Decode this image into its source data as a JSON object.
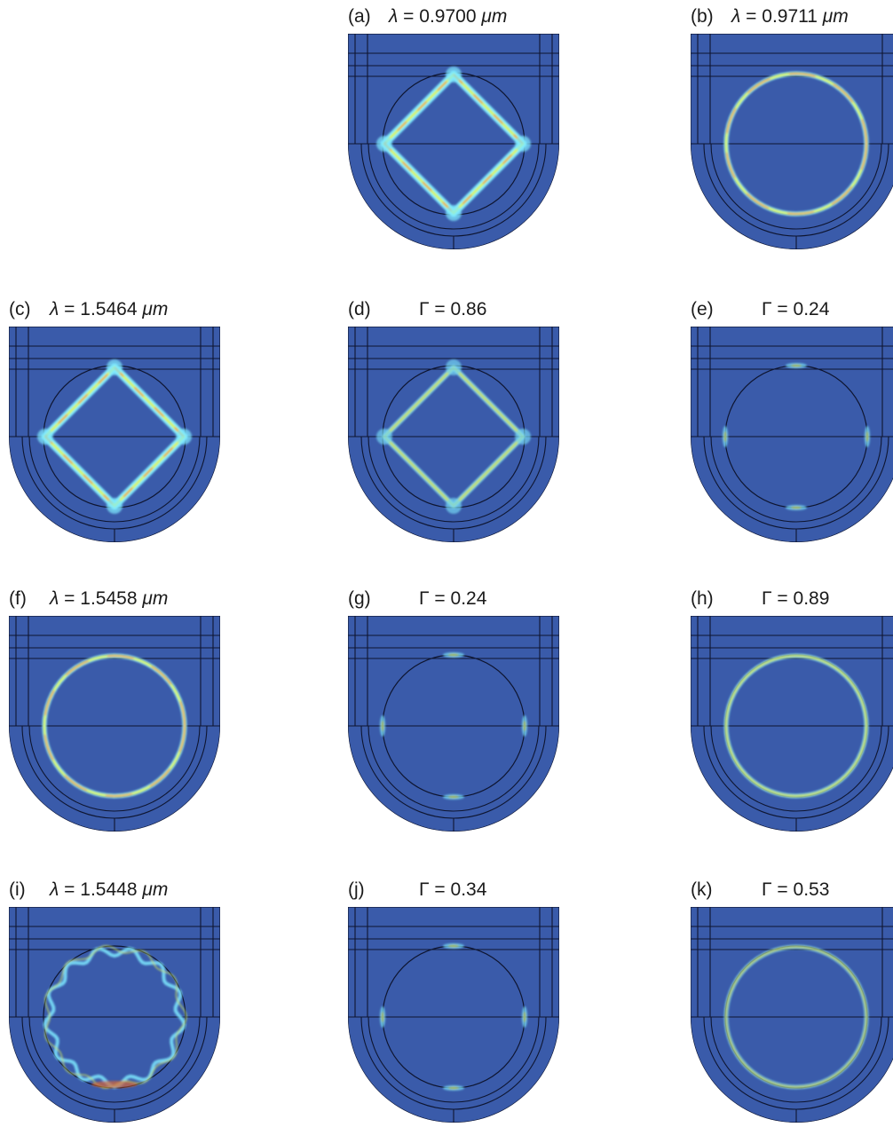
{
  "figure": {
    "field_style": {
      "background": "#3A5BAA",
      "outline": "#0E1530",
      "hot_colors": [
        "#7FE9FF",
        "#D9F55A",
        "#F26A22"
      ]
    },
    "panels": [
      {
        "id": "a",
        "letter": "(a)",
        "symbol": "λ",
        "value": "= 0.9700",
        "unit": "μm",
        "mode": "diamond",
        "intensity": "strong"
      },
      {
        "id": "b",
        "letter": "(b)",
        "symbol": "λ",
        "value": "= 0.9711",
        "unit": "μm",
        "mode": "ring",
        "intensity": "strong"
      },
      {
        "id": "c",
        "letter": "(c)",
        "symbol": "λ",
        "value": "= 1.5464",
        "unit": "μm",
        "mode": "diamond",
        "intensity": "strong"
      },
      {
        "id": "d",
        "letter": "(d)",
        "symbol": "Γ",
        "value": "= 0.86",
        "unit": "",
        "mode": "diamond",
        "intensity": "medium"
      },
      {
        "id": "e",
        "letter": "(e)",
        "symbol": "Γ",
        "value": "= 0.24",
        "unit": "",
        "mode": "spots",
        "intensity": "weak"
      },
      {
        "id": "f",
        "letter": "(f)",
        "symbol": "λ",
        "value": "= 1.5458",
        "unit": "μm",
        "mode": "ring",
        "intensity": "strong"
      },
      {
        "id": "g",
        "letter": "(g)",
        "symbol": "Γ",
        "value": "= 0.24",
        "unit": "",
        "mode": "spots",
        "intensity": "weak"
      },
      {
        "id": "h",
        "letter": "(h)",
        "symbol": "Γ",
        "value": "= 0.89",
        "unit": "",
        "mode": "ring",
        "intensity": "medium"
      },
      {
        "id": "i",
        "letter": "(i)",
        "symbol": "λ",
        "value": "= 1.5448",
        "unit": "μm",
        "mode": "wavy",
        "intensity": "medium"
      },
      {
        "id": "j",
        "letter": "(j)",
        "symbol": "Γ",
        "value": "= 0.34",
        "unit": "",
        "mode": "spots",
        "intensity": "weak"
      },
      {
        "id": "k",
        "letter": "(k)",
        "symbol": "Γ",
        "value": "= 0.53",
        "unit": "",
        "mode": "ring",
        "intensity": "weak"
      }
    ]
  }
}
